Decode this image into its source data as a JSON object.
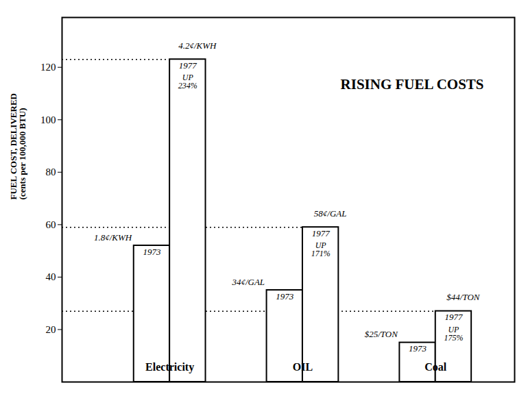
{
  "chart_data": {
    "type": "bar",
    "title": "RISING FUEL COSTS",
    "ylabel": [
      "FUEL COST, DELIVERED",
      "(cents per 100,000 BTU)"
    ],
    "categories": [
      "Electricity",
      "OIL",
      "Coal"
    ],
    "series": [
      {
        "name": "1973",
        "color": "#ffffff",
        "values": [
          52,
          35,
          15
        ],
        "price_labels": [
          "1.8¢/KWH",
          "34¢/GAL",
          "$25/TON"
        ]
      },
      {
        "name": "1977",
        "color": "#ffffff",
        "values": [
          123,
          59,
          27
        ],
        "price_labels": [
          "4.2¢/KWH",
          "58¢/GAL",
          "$44/TON"
        ]
      }
    ],
    "change_labels": [
      [
        "UP",
        "234%"
      ],
      [
        "UP",
        "171%"
      ],
      [
        "UP",
        "175%"
      ]
    ],
    "ylim": [
      0,
      139
    ],
    "yticks": [
      20,
      40,
      60,
      80,
      100,
      120
    ],
    "grid": false
  }
}
